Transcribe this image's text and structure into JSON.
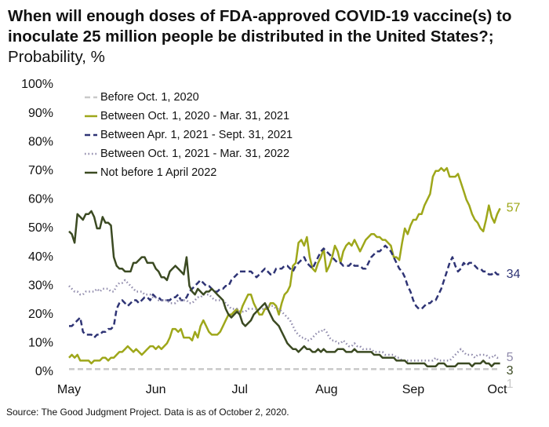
{
  "chart_data": {
    "type": "line",
    "title": "When will enough doses of FDA-approved COVID-19 vaccine(s) to inoculate 25 million people be distributed in the United States?;",
    "subtitle": "Probability, %",
    "source": "Source: The Good Judgment Project. Data is as of October 2, 2020.",
    "categories": [
      "May",
      null,
      null,
      null,
      null,
      null,
      null,
      null,
      null,
      null,
      null,
      null,
      null,
      null,
      null,
      null,
      null,
      null,
      null,
      null,
      null,
      null,
      null,
      null,
      null,
      null,
      null,
      null,
      null,
      null,
      null,
      "Jun",
      null,
      null,
      null,
      null,
      null,
      null,
      null,
      null,
      null,
      null,
      null,
      null,
      null,
      null,
      null,
      null,
      null,
      null,
      null,
      null,
      null,
      null,
      null,
      null,
      null,
      null,
      null,
      null,
      null,
      "Jul",
      null,
      null,
      null,
      null,
      null,
      null,
      null,
      null,
      null,
      null,
      null,
      null,
      null,
      null,
      null,
      null,
      null,
      null,
      null,
      null,
      null,
      null,
      null,
      null,
      null,
      null,
      null,
      null,
      null,
      null,
      "Aug",
      null,
      null,
      null,
      null,
      null,
      null,
      null,
      null,
      null,
      null,
      null,
      null,
      null,
      null,
      null,
      null,
      null,
      null,
      null,
      null,
      null,
      null,
      null,
      null,
      null,
      null,
      null,
      null,
      null,
      null,
      "Sep",
      null,
      null,
      null,
      null,
      null,
      null,
      null,
      null,
      null,
      null,
      null,
      null,
      null,
      null,
      null,
      null,
      null,
      null,
      null,
      null,
      null,
      null,
      null,
      null,
      null,
      null,
      null,
      null,
      null,
      "Oct",
      null
    ],
    "ylim": [
      0,
      100
    ],
    "yticks": [
      {
        "value": 0,
        "label": "0%"
      },
      {
        "value": 10,
        "label": "10%"
      },
      {
        "value": 20,
        "label": "20%"
      },
      {
        "value": 30,
        "label": "30%"
      },
      {
        "value": 40,
        "label": "40%"
      },
      {
        "value": 50,
        "label": "50%"
      },
      {
        "value": 60,
        "label": "60%"
      },
      {
        "value": 70,
        "label": "70%"
      },
      {
        "value": 80,
        "label": "80%"
      },
      {
        "value": 90,
        "label": "90%"
      },
      {
        "value": 100,
        "label": "100%"
      }
    ],
    "grid": false,
    "legend": "top-left",
    "series": [
      {
        "name": "Before Oct. 1, 2020",
        "color": "#c9c9c9",
        "dash": "dashed",
        "values": [
          1,
          1,
          1,
          1,
          1,
          1,
          1,
          1,
          1,
          1,
          1,
          1,
          1,
          1,
          1,
          1,
          1,
          1,
          1,
          1,
          1,
          1,
          1,
          1,
          1,
          1,
          1,
          1,
          1,
          1,
          1,
          1,
          1,
          1,
          1,
          1,
          1,
          1,
          1,
          1,
          1,
          1,
          1,
          1,
          1,
          1,
          1,
          1,
          1,
          1,
          1,
          1,
          1,
          1,
          1,
          1,
          1,
          1,
          1,
          1,
          1,
          1,
          1,
          1,
          1,
          1,
          1,
          1,
          1,
          1,
          1,
          1,
          1,
          1,
          1,
          1,
          1,
          1,
          1,
          1,
          1,
          1,
          1,
          1,
          1,
          1,
          1,
          1,
          1,
          1,
          1,
          1,
          1,
          1,
          1,
          1,
          1,
          1,
          1,
          1,
          1,
          1,
          1,
          1,
          1,
          1,
          1,
          1,
          1,
          1,
          1,
          1,
          1,
          1,
          1,
          1,
          1,
          1,
          1,
          1,
          1,
          1,
          1,
          1,
          1,
          1,
          1,
          1,
          1,
          1,
          1,
          1,
          1,
          1,
          1,
          1,
          1,
          1,
          1,
          1,
          1,
          1,
          1,
          1,
          1,
          1,
          1,
          1,
          1,
          1,
          1,
          1,
          1,
          1,
          1
        ]
      },
      {
        "name": "Between Oct. 1, 2020 - Mar. 31, 2021",
        "color": "#9ea71a",
        "dash": "solid",
        "values": [
          5,
          6,
          5,
          6,
          4,
          4,
          4,
          4,
          3,
          4,
          4,
          4,
          5,
          5,
          4,
          5,
          5,
          6,
          7,
          7,
          8,
          9,
          8,
          7,
          8,
          7,
          6,
          7,
          8,
          9,
          9,
          8,
          9,
          8,
          9,
          10,
          12,
          15,
          15,
          14,
          15,
          12,
          12,
          12,
          11,
          14,
          12,
          16,
          18,
          16,
          14,
          13,
          13,
          13,
          14,
          16,
          18,
          20,
          20,
          21,
          22,
          20,
          23,
          25,
          27,
          27,
          24,
          22,
          20,
          20,
          22,
          22,
          24,
          24,
          23,
          20,
          24,
          27,
          28,
          30,
          37,
          38,
          45,
          46,
          44,
          47,
          40,
          36,
          35,
          38,
          40,
          43,
          35,
          37,
          40,
          44,
          42,
          38,
          42,
          44,
          45,
          44,
          46,
          44,
          42,
          44,
          46,
          47,
          48,
          48,
          47,
          47,
          46,
          46,
          45,
          44,
          40,
          40,
          39,
          45,
          50,
          48,
          51,
          53,
          53,
          55,
          55,
          58,
          60,
          62,
          68,
          70,
          70,
          71,
          70,
          71,
          68,
          68,
          68,
          69,
          66,
          63,
          60,
          58,
          55,
          53,
          52,
          50,
          49,
          53,
          58,
          54,
          52,
          55,
          57
        ]
      },
      {
        "name": "Between Apr. 1, 2021 - Sept. 31, 2021",
        "color": "#2f3475",
        "dash": "dashed",
        "values": [
          16,
          16,
          17,
          18,
          19,
          14,
          13,
          13,
          13,
          12,
          13,
          13,
          14,
          14,
          15,
          15,
          16,
          22,
          24,
          25,
          24,
          23,
          24,
          25,
          25,
          24,
          25,
          26,
          26,
          25,
          27,
          26,
          26,
          25,
          25,
          25,
          25,
          26,
          26,
          27,
          25,
          25,
          26,
          28,
          29,
          30,
          31,
          32,
          31,
          30,
          30,
          29,
          28,
          28,
          29,
          29,
          30,
          30,
          32,
          33,
          34,
          35,
          35,
          35,
          35,
          35,
          34,
          33,
          34,
          35,
          36,
          35,
          34,
          34,
          36,
          36,
          36,
          37,
          37,
          36,
          35,
          37,
          38,
          39,
          40,
          38,
          37,
          36,
          38,
          40,
          42,
          43,
          42,
          41,
          40,
          39,
          38,
          38,
          37,
          37,
          37,
          38,
          37,
          37,
          37,
          36,
          36,
          38,
          40,
          41,
          42,
          42,
          43,
          44,
          43,
          42,
          40,
          38,
          36,
          35,
          33,
          30,
          28,
          25,
          23,
          22,
          22,
          23,
          24,
          24,
          25,
          25,
          27,
          29,
          32,
          35,
          38,
          40,
          37,
          35,
          36,
          38,
          37,
          38,
          38,
          37,
          36,
          36,
          35,
          35,
          34,
          34,
          35,
          34,
          34
        ]
      },
      {
        "name": "Between Oct. 1, 2021 - Mar. 31, 2022",
        "color": "#8f8aab",
        "dash": "dotted",
        "values": [
          30,
          29,
          28,
          28,
          27,
          27,
          28,
          28,
          28,
          28,
          29,
          28,
          29,
          29,
          29,
          28,
          28,
          30,
          31,
          31,
          32,
          31,
          30,
          29,
          28,
          28,
          28,
          27,
          27,
          27,
          26,
          26,
          25,
          25,
          25,
          25,
          24,
          24,
          24,
          25,
          25,
          25,
          25,
          24,
          24,
          25,
          26,
          26,
          27,
          27,
          27,
          26,
          25,
          25,
          25,
          25,
          24,
          23,
          22,
          22,
          22,
          21,
          21,
          21,
          22,
          22,
          22,
          22,
          22,
          22,
          22,
          23,
          23,
          23,
          22,
          22,
          21,
          20,
          19,
          18,
          16,
          14,
          13,
          12,
          12,
          11,
          11,
          12,
          13,
          14,
          14,
          15,
          14,
          12,
          11,
          11,
          10,
          10,
          11,
          10,
          9,
          9,
          10,
          9,
          9,
          8,
          8,
          8,
          8,
          7,
          7,
          7,
          7,
          6,
          6,
          6,
          6,
          5,
          5,
          4,
          4,
          4,
          4,
          4,
          4,
          4,
          4,
          4,
          4,
          4,
          4,
          5,
          4,
          4,
          4,
          4,
          4,
          5,
          6,
          7,
          8,
          7,
          6,
          6,
          6,
          5,
          6,
          6,
          6,
          6,
          5,
          5,
          6,
          5,
          5
        ]
      },
      {
        "name": "Not before 1 April 2022",
        "color": "#3b4a22",
        "dash": "solid",
        "values": [
          49,
          48,
          45,
          55,
          54,
          53,
          55,
          55,
          56,
          54,
          50,
          50,
          54,
          52,
          52,
          51,
          40,
          37,
          36,
          36,
          35,
          35,
          35,
          38,
          38,
          39,
          40,
          40,
          38,
          38,
          38,
          36,
          35,
          33,
          33,
          32,
          35,
          36,
          37,
          36,
          35,
          34,
          40,
          30,
          28,
          27,
          29,
          28,
          27,
          28,
          28,
          29,
          28,
          27,
          26,
          25,
          22,
          20,
          19,
          20,
          21,
          20,
          17,
          16,
          17,
          18,
          20,
          21,
          22,
          23,
          24,
          22,
          20,
          18,
          17,
          16,
          14,
          12,
          10,
          9,
          8,
          8,
          7,
          8,
          9,
          8,
          8,
          7,
          7,
          8,
          7,
          8,
          7,
          7,
          7,
          7,
          8,
          8,
          8,
          7,
          7,
          7,
          8,
          7,
          7,
          7,
          7,
          7,
          7,
          6,
          6,
          6,
          5,
          5,
          5,
          5,
          5,
          4,
          4,
          4,
          4,
          3,
          3,
          3,
          3,
          3,
          3,
          3,
          2,
          2,
          2,
          2,
          3,
          3,
          3,
          2,
          2,
          2,
          2,
          3,
          3,
          3,
          3,
          3,
          2,
          3,
          3,
          3,
          4,
          3,
          3,
          2,
          3,
          3,
          3
        ]
      }
    ]
  }
}
